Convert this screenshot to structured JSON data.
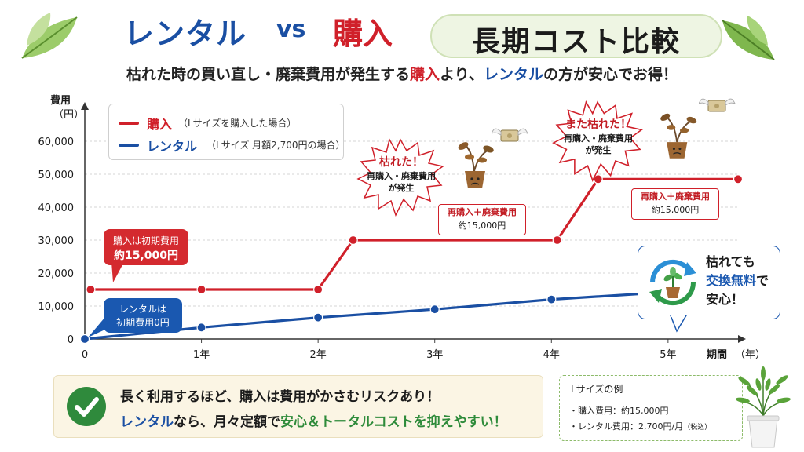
{
  "title": {
    "rental": "レンタル",
    "vs": "vs",
    "buy": "購入",
    "main": "長期コスト比較"
  },
  "subtitle": {
    "part1": "枯れた時の買い直し・廃棄費用が発生する",
    "buy": "購入",
    "part2": "より、",
    "rental": "レンタル",
    "part3": "の方が安心でお得！"
  },
  "colors": {
    "buy": "#d0202a",
    "rental": "#1a4fa3",
    "accent_green": "#2e8b3a"
  },
  "legend": {
    "buy_name": "購入",
    "buy_note": "（Lサイズを購入した場合）",
    "rental_name": "レンタル",
    "rental_note": "（Lサイズ 月額2,700円の場合）"
  },
  "chart_data": {
    "type": "line",
    "ylabel": "費用",
    "ylabel_unit": "（円）",
    "xlabel": "期間",
    "xlabel_unit": "（年）",
    "ylim": [
      0,
      60000
    ],
    "xlim": [
      0,
      5.6
    ],
    "y_ticks": [
      0,
      10000,
      20000,
      30000,
      40000,
      50000,
      60000
    ],
    "y_tick_labels": [
      "0",
      "10,000",
      "20,000",
      "30,000",
      "40,000",
      "50,000",
      "60,000"
    ],
    "x_ticks": [
      0,
      1,
      2,
      3,
      4,
      5
    ],
    "x_tick_labels": [
      "0",
      "1年",
      "2年",
      "3年",
      "4年",
      "5年"
    ],
    "grid": true,
    "series": [
      {
        "name": "購入",
        "color": "#d0202a",
        "points": [
          [
            0.05,
            15000
          ],
          [
            1,
            15000
          ],
          [
            2,
            15000
          ],
          [
            2.3,
            30000
          ],
          [
            3,
            30000
          ],
          [
            4.05,
            30000
          ],
          [
            4.4,
            48500
          ],
          [
            5.6,
            48500
          ]
        ],
        "marker_indices": [
          0,
          1,
          2,
          3,
          5,
          6,
          7
        ]
      },
      {
        "name": "レンタル",
        "color": "#1a4fa3",
        "points": [
          [
            0,
            0
          ],
          [
            1,
            3500
          ],
          [
            2,
            6500
          ],
          [
            3,
            9000
          ],
          [
            4,
            12000
          ],
          [
            4.9,
            14000
          ]
        ],
        "marker_indices": [
          0,
          1,
          2,
          3,
          4
        ]
      }
    ],
    "annotations": {
      "buy_initial": [
        "購入は初期費用",
        "約15,000円"
      ],
      "rental_initial": [
        "レンタルは",
        "初期費用0円"
      ],
      "withered1": [
        "枯れた！",
        "再購入・廃棄費用",
        "が発生"
      ],
      "withered2": [
        "また枯れた！",
        "再購入・廃棄費用",
        "が発生"
      ],
      "cost1": [
        "再購入＋廃棄費用",
        "約15,000円"
      ],
      "cost2": [
        "再購入＋廃棄費用",
        "約15,000円"
      ]
    }
  },
  "swap": {
    "line1": "枯れても",
    "line2_blue": "交換無料",
    "line2_rest": "で",
    "line3": "安心！"
  },
  "bottom": {
    "line1": "長く利用するほど、購入は費用がかさむリスクあり！",
    "line2_blue": "レンタル",
    "line2_mid": "なら、月々定額で",
    "line2_green": "安心＆トータルコストを抑えやすい！"
  },
  "example": {
    "title": "Lサイズの例",
    "buy": "・購入費用：約15,000円",
    "rental_main": "・レンタル費用：2,700円/月",
    "rental_tax": "（税込）"
  }
}
